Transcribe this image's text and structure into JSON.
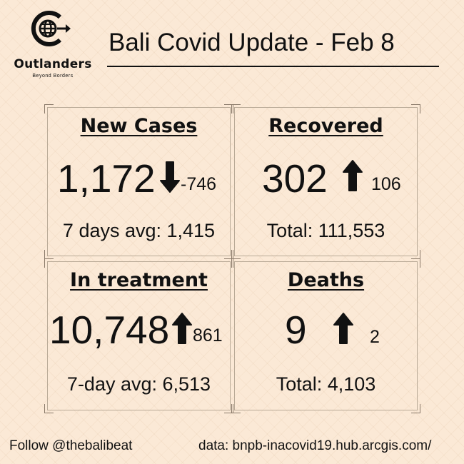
{
  "brand": {
    "name": "Outlanders",
    "tagline": "Beyond Borders",
    "icon": "globe-arrow-icon"
  },
  "header": {
    "title": "Bali Covid Update - Feb 8"
  },
  "panels": {
    "new_cases": {
      "label": "New Cases",
      "value": "1,172",
      "trend": "down",
      "change": "-746",
      "detail": "7 days avg: 1,415"
    },
    "recovered": {
      "label": "Recovered",
      "value": "302",
      "trend": "up",
      "change": "106",
      "detail": "Total: 111,553"
    },
    "in_treatment": {
      "label": "In treatment",
      "value": "10,748",
      "trend": "up",
      "change": "861",
      "detail": "7-day avg: 6,513"
    },
    "deaths": {
      "label": "Deaths",
      "value": "9",
      "trend": "up",
      "change": "2",
      "detail": "Total: 4,103"
    }
  },
  "footer": {
    "follow": "Follow @thebalibeat",
    "source": "data: bnpb-inacovid19.hub.arcgis.com/"
  },
  "colors": {
    "background": "#fbe9d6",
    "text": "#111111"
  }
}
